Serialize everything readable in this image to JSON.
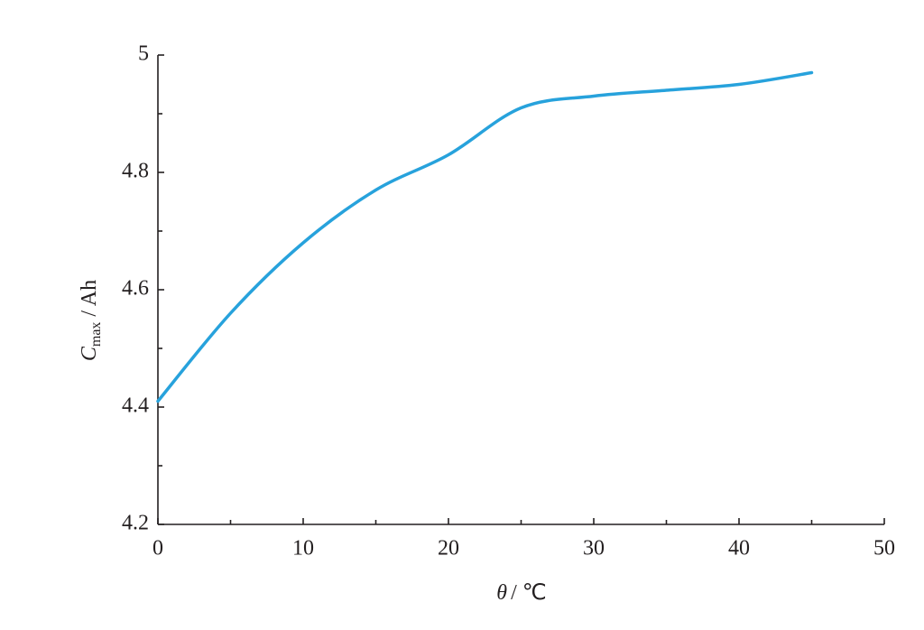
{
  "chart_data": {
    "type": "line",
    "x_label": {
      "symbol": "θ",
      "unit": "/ ℃"
    },
    "y_label": {
      "symbol": "C",
      "subscript": "max",
      "unit": "/ Ah"
    },
    "x": [
      0,
      5,
      10,
      15,
      20,
      25,
      30,
      35,
      40,
      45
    ],
    "series": [
      {
        "color": "#27a2dc",
        "values": [
          4.41,
          4.56,
          4.68,
          4.77,
          4.83,
          4.91,
          4.93,
          4.94,
          4.95,
          4.97
        ]
      }
    ],
    "xlim": [
      0,
      50
    ],
    "xticks": [
      0,
      10,
      20,
      30,
      40,
      50
    ],
    "xminor": [
      5,
      15,
      25,
      35,
      45
    ],
    "ylim": [
      4.2,
      5
    ],
    "yticks": [
      4.2,
      4.4,
      4.6,
      4.8,
      5
    ],
    "yminor": [
      4.3,
      4.5,
      4.7,
      4.9
    ],
    "smooth": true
  }
}
